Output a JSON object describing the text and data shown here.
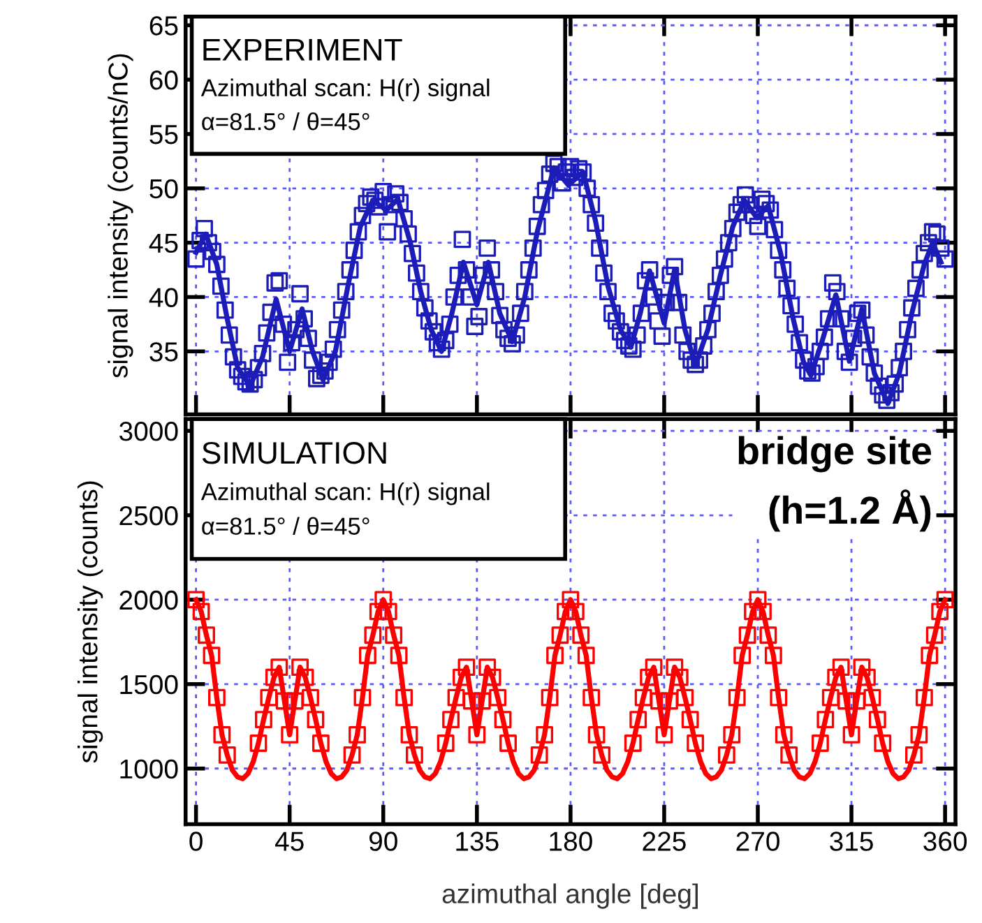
{
  "chart_data": [
    {
      "type": "scatter",
      "title": "EXPERIMENT",
      "ylabel": "signal intensity (counts/nC)",
      "annotations": [
        "Azimuthal scan: H(r) signal",
        "α=81.5° / θ=45°"
      ],
      "xlim": [
        -5,
        365
      ],
      "xticks": [
        0,
        45,
        90,
        135,
        180,
        225,
        270,
        315,
        360
      ],
      "ylim": [
        29.2,
        65.8
      ],
      "yticks": [
        35,
        40,
        45,
        50,
        55,
        60,
        65
      ],
      "tick_labels": "y",
      "grid": true,
      "legend": false,
      "series": [
        {
          "marker": "square",
          "color": "#1c1cb8",
          "x": [
            0,
            2,
            4,
            6,
            8,
            10,
            12,
            14,
            16,
            18,
            20,
            22,
            24,
            26,
            28,
            30,
            32,
            34,
            36,
            38,
            40,
            42,
            44,
            46,
            48,
            50,
            52,
            54,
            56,
            58,
            60,
            62,
            64,
            66,
            68,
            70,
            72,
            74,
            76,
            78,
            80,
            82,
            84,
            86,
            88,
            90,
            92,
            94,
            96,
            98,
            100,
            102,
            104,
            106,
            108,
            110,
            112,
            114,
            116,
            118,
            120,
            122,
            124,
            126,
            128,
            130,
            132,
            134,
            136,
            138,
            140,
            142,
            144,
            146,
            148,
            150,
            152,
            154,
            156,
            158,
            160,
            162,
            164,
            166,
            168,
            170,
            172,
            174,
            176,
            178,
            180,
            182,
            184,
            186,
            188,
            190,
            192,
            194,
            196,
            198,
            200,
            202,
            204,
            206,
            208,
            210,
            212,
            214,
            216,
            218,
            220,
            222,
            224,
            226,
            228,
            230,
            232,
            234,
            236,
            238,
            240,
            242,
            244,
            246,
            248,
            250,
            252,
            254,
            256,
            258,
            260,
            262,
            264,
            266,
            268,
            270,
            272,
            274,
            276,
            278,
            280,
            282,
            284,
            286,
            288,
            290,
            292,
            294,
            296,
            298,
            300,
            302,
            304,
            306,
            308,
            310,
            312,
            314,
            316,
            318,
            320,
            322,
            324,
            326,
            328,
            330,
            332,
            334,
            336,
            338,
            340,
            342,
            344,
            346,
            348,
            350,
            352,
            354,
            356,
            358,
            360
          ],
          "values": [
            43.5,
            45.2,
            46.3,
            45.0,
            44.2,
            43.0,
            41.0,
            38.8,
            36.5,
            34.5,
            33.3,
            32.7,
            32.2,
            32.0,
            32.4,
            33.5,
            34.8,
            36.7,
            38.6,
            41.3,
            41.5,
            37.5,
            34.0,
            35.8,
            37.0,
            40.3,
            38.0,
            36.2,
            34.2,
            32.5,
            32.8,
            33.2,
            34.0,
            35.2,
            37.0,
            38.8,
            40.5,
            42.5,
            44.3,
            46.0,
            47.5,
            48.6,
            49.2,
            48.9,
            48.3,
            49.7,
            46.0,
            48.5,
            49.5,
            48.7,
            47.2,
            45.8,
            44.0,
            42.2,
            40.5,
            39.0,
            37.8,
            36.8,
            35.8,
            35.2,
            36.0,
            37.5,
            40.0,
            42.0,
            45.3,
            42.5,
            40.0,
            37.3,
            38.2,
            42.0,
            44.5,
            42.5,
            40.5,
            38.3,
            37.0,
            36.2,
            35.7,
            36.5,
            38.5,
            40.5,
            42.5,
            44.5,
            46.5,
            48.5,
            49.8,
            51.3,
            52.3,
            52.0,
            50.5,
            51.5,
            52.0,
            51.0,
            51.8,
            51.5,
            50.0,
            48.5,
            46.8,
            44.5,
            42.2,
            40.5,
            38.5,
            37.8,
            36.8,
            36.0,
            35.5,
            35.2,
            36.5,
            38.5,
            41.5,
            42.5,
            40.0,
            37.8,
            36.4,
            39.5,
            42.0,
            42.8,
            39.5,
            36.5,
            35.0,
            34.2,
            33.8,
            34.2,
            35.5,
            37.0,
            38.5,
            40.5,
            42.0,
            43.5,
            45.0,
            46.3,
            47.8,
            48.5,
            49.4,
            48.5,
            47.5,
            46.5,
            49.0,
            48.6,
            48.0,
            46.2,
            44.3,
            42.5,
            40.8,
            39.2,
            37.5,
            35.8,
            34.2,
            33.2,
            33.0,
            33.6,
            35.0,
            36.3,
            38.0,
            41.3,
            40.5,
            38.0,
            35.0,
            34.0,
            36.2,
            38.5,
            38.8,
            36.5,
            34.5,
            33.0,
            31.8,
            31.0,
            30.5,
            31.2,
            32.0,
            33.5,
            35.0,
            37.0,
            39.0,
            40.8,
            42.5,
            44.0,
            45.0,
            46.0,
            45.8,
            44.5,
            43.5
          ]
        },
        {
          "type": "line",
          "line_style": "solid",
          "color": "#1c1cb8",
          "x": [
            0,
            4.7,
            10,
            15,
            20,
            26,
            32,
            38.5,
            45,
            51,
            56,
            61,
            67,
            73,
            79,
            85,
            91.5,
            97,
            103,
            108,
            113,
            118,
            123,
            128.5,
            135,
            140.5,
            146,
            152,
            158,
            164,
            172,
            179,
            186,
            192,
            198,
            204,
            209,
            213.5,
            218,
            225,
            230,
            235,
            240,
            246,
            252,
            258,
            263.5,
            269.5,
            275,
            281,
            287,
            292,
            295.5,
            301,
            307.5,
            314,
            320,
            326,
            332.5,
            338,
            344,
            350,
            354,
            358
          ],
          "values": [
            44.1,
            45.8,
            43,
            38,
            33.5,
            31.8,
            34.5,
            39.8,
            35.0,
            38.9,
            35,
            32.4,
            35,
            41,
            46.5,
            48.9,
            48.0,
            49.0,
            45,
            40.5,
            37,
            35.0,
            38.5,
            43.2,
            39.3,
            43.2,
            38.5,
            35.9,
            40,
            46,
            51.9,
            50.3,
            51.5,
            47,
            41,
            37,
            35.4,
            38.5,
            42.4,
            37.6,
            42.5,
            37,
            33.7,
            37,
            42,
            46.5,
            48.9,
            47.3,
            48.4,
            44,
            38,
            34,
            32.8,
            36,
            40.2,
            34.1,
            38.9,
            33,
            30.2,
            33,
            38.5,
            43,
            45,
            43.2
          ]
        }
      ]
    },
    {
      "type": "scatter",
      "title": "SIMULATION",
      "ylabel": "signal intensity (counts)",
      "xlabel": "azimuthal angle [deg]",
      "annotations": [
        "Azimuthal scan: H(r) signal",
        "α=81.5° / θ=45°",
        "bridge site\n(h=1.2 Å)"
      ],
      "xlim": [
        -5,
        365
      ],
      "xticks": [
        0,
        45,
        90,
        135,
        180,
        225,
        270,
        315,
        360
      ],
      "ylim": [
        670,
        3070
      ],
      "yticks": [
        1000,
        1500,
        2000,
        2500,
        3000
      ],
      "grid": true,
      "legend": false,
      "series": [
        {
          "marker": "square",
          "color": "#ff0000",
          "x": [
            0,
            2.5,
            5,
            7.5,
            10,
            12.5,
            15,
            30,
            32.5,
            35,
            37.5,
            40,
            42.5,
            45,
            47.5,
            50,
            52.5,
            55,
            57.5,
            60,
            75,
            77.5,
            80,
            82.5,
            85,
            87.5,
            90,
            92.5,
            95,
            97.5,
            100,
            102.5,
            105,
            120,
            122.5,
            125,
            127.5,
            130,
            132.5,
            135,
            137.5,
            140,
            142.5,
            145,
            147.5,
            150,
            165,
            167.5,
            170,
            172.5,
            175,
            177.5,
            180,
            182.5,
            185,
            187.5,
            190,
            192.5,
            195,
            210,
            212.5,
            215,
            217.5,
            220,
            222.5,
            225,
            227.5,
            230,
            232.5,
            235,
            237.5,
            240,
            255,
            257.5,
            260,
            262.5,
            265,
            267.5,
            270,
            272.5,
            275,
            277.5,
            280,
            282.5,
            285,
            300,
            302.5,
            305,
            307.5,
            310,
            312.5,
            315,
            317.5,
            320,
            322.5,
            325,
            327.5,
            330,
            345,
            347.5,
            350,
            352.5,
            355,
            357.5,
            360
          ],
          "values": [
            2000,
            1930,
            1790,
            1670,
            1420,
            1200,
            1080,
            1150,
            1290,
            1420,
            1540,
            1600,
            1400,
            1200,
            1400,
            1600,
            1540,
            1420,
            1290,
            1150,
            1080,
            1200,
            1420,
            1670,
            1790,
            1930,
            2000,
            1930,
            1790,
            1670,
            1420,
            1200,
            1080,
            1150,
            1290,
            1420,
            1540,
            1600,
            1400,
            1200,
            1400,
            1600,
            1540,
            1420,
            1290,
            1150,
            1080,
            1200,
            1420,
            1670,
            1790,
            1930,
            2000,
            1930,
            1790,
            1670,
            1420,
            1200,
            1080,
            1150,
            1290,
            1420,
            1540,
            1600,
            1400,
            1200,
            1400,
            1600,
            1540,
            1420,
            1290,
            1150,
            1080,
            1200,
            1420,
            1670,
            1790,
            1930,
            2000,
            1930,
            1790,
            1670,
            1420,
            1200,
            1080,
            1150,
            1290,
            1420,
            1540,
            1600,
            1400,
            1200,
            1400,
            1600,
            1540,
            1420,
            1290,
            1150,
            1080,
            1200,
            1420,
            1670,
            1790,
            1930,
            2000
          ]
        },
        {
          "type": "line",
          "line_style": "solid",
          "color": "#ff0000",
          "x": [
            0,
            2.5,
            5,
            7.5,
            10,
            12.5,
            15,
            17.5,
            20,
            22.5,
            25,
            27.5,
            30,
            32.5,
            35,
            37.5,
            40,
            42.5,
            45,
            47.5,
            50,
            52.5,
            55,
            57.5,
            60,
            62.5,
            65,
            67.5,
            70,
            72.5,
            75,
            77.5,
            80,
            82.5,
            85,
            87.5,
            90,
            92.5,
            95,
            97.5,
            100,
            102.5,
            105,
            107.5,
            110,
            112.5,
            115,
            117.5,
            120,
            122.5,
            125,
            127.5,
            130,
            132.5,
            135,
            137.5,
            140,
            142.5,
            145,
            147.5,
            150,
            152.5,
            155,
            157.5,
            160,
            162.5,
            165,
            167.5,
            170,
            172.5,
            175,
            177.5,
            180,
            182.5,
            185,
            187.5,
            190,
            192.5,
            195,
            197.5,
            200,
            202.5,
            205,
            207.5,
            210,
            212.5,
            215,
            217.5,
            220,
            222.5,
            225,
            227.5,
            230,
            232.5,
            235,
            237.5,
            240,
            242.5,
            245,
            247.5,
            250,
            252.5,
            255,
            257.5,
            260,
            262.5,
            265,
            267.5,
            270,
            272.5,
            275,
            277.5,
            280,
            282.5,
            285,
            287.5,
            290,
            292.5,
            295,
            297.5,
            300,
            302.5,
            305,
            307.5,
            310,
            312.5,
            315,
            317.5,
            320,
            322.5,
            325,
            327.5,
            330,
            332.5,
            335,
            337.5,
            340,
            342.5,
            345,
            347.5,
            350,
            352.5,
            355,
            357.5,
            360
          ],
          "values": [
            2000,
            1930,
            1790,
            1670,
            1420,
            1200,
            1080,
            990,
            950,
            940,
            970,
            1040,
            1150,
            1290,
            1420,
            1540,
            1600,
            1400,
            1200,
            1400,
            1600,
            1540,
            1420,
            1290,
            1150,
            1040,
            970,
            940,
            950,
            990,
            1080,
            1200,
            1420,
            1670,
            1790,
            1930,
            2000,
            1930,
            1790,
            1670,
            1420,
            1200,
            1080,
            990,
            950,
            940,
            970,
            1040,
            1150,
            1290,
            1420,
            1540,
            1600,
            1400,
            1200,
            1400,
            1600,
            1540,
            1420,
            1290,
            1150,
            1040,
            970,
            940,
            950,
            990,
            1080,
            1200,
            1420,
            1670,
            1790,
            1930,
            2000,
            1930,
            1790,
            1670,
            1420,
            1200,
            1080,
            990,
            950,
            940,
            970,
            1040,
            1150,
            1290,
            1420,
            1540,
            1600,
            1400,
            1200,
            1400,
            1600,
            1540,
            1420,
            1290,
            1150,
            1040,
            970,
            940,
            950,
            990,
            1080,
            1200,
            1420,
            1670,
            1790,
            1930,
            2000,
            1930,
            1790,
            1670,
            1420,
            1200,
            1080,
            990,
            950,
            940,
            970,
            1040,
            1150,
            1290,
            1420,
            1540,
            1600,
            1400,
            1200,
            1400,
            1600,
            1540,
            1420,
            1290,
            1150,
            1040,
            970,
            940,
            950,
            990,
            1080,
            1200,
            1420,
            1670,
            1790,
            1930,
            2000
          ]
        }
      ]
    }
  ]
}
